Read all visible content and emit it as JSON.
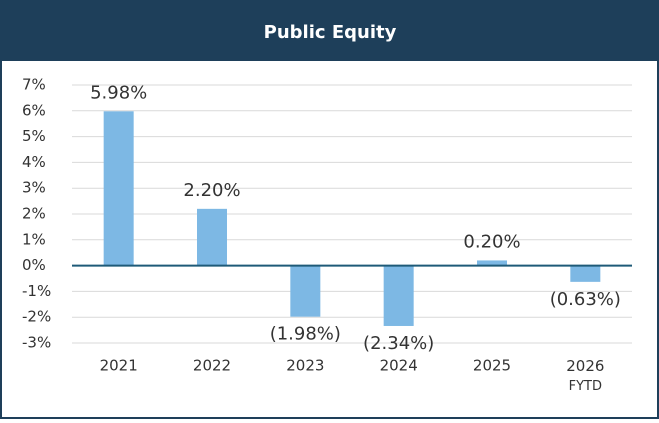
{
  "chart_data": {
    "type": "bar",
    "title": "Public Equity",
    "categories": [
      "2021",
      "2022",
      "2023",
      "2024",
      "2025",
      "2026 FYTD"
    ],
    "values": [
      5.98,
      2.2,
      -1.98,
      -2.34,
      0.2,
      -0.63
    ],
    "value_labels": [
      "5.98%",
      "2.20%",
      "(1.98%)",
      "(2.34%)",
      "0.20%",
      "(0.63%)"
    ],
    "color": "#7db8e4",
    "ylim": [
      -3,
      7
    ],
    "yticks": [
      {
        "value": -3,
        "label": "-3%"
      },
      {
        "value": -2,
        "label": "-2%"
      },
      {
        "value": -1,
        "label": "-1%"
      },
      {
        "value": 0,
        "label": "0%"
      },
      {
        "value": 1,
        "label": "1%"
      },
      {
        "value": 2,
        "label": "2%"
      },
      {
        "value": 3,
        "label": "3%"
      },
      {
        "value": 4,
        "label": "4%"
      },
      {
        "value": 5,
        "label": "5%"
      },
      {
        "value": 6,
        "label": "6%"
      },
      {
        "value": 7,
        "label": "7%"
      }
    ],
    "grid": true
  }
}
